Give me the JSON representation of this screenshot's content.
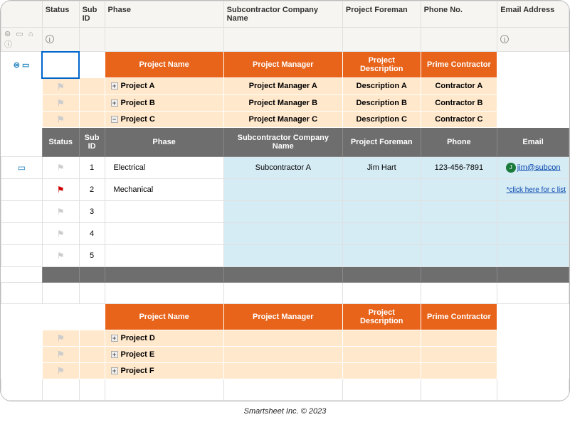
{
  "columns": {
    "status": "Status",
    "subid": "Sub ID",
    "phase": "Phase",
    "subco": "Subcontractor Company Name",
    "foreman": "Project Foreman",
    "phoneno": "Phone No.",
    "email": "Email Address"
  },
  "orangeHeaders": {
    "projectName": "Project Name",
    "projectManager": "Project Manager",
    "projectDescription": "Project Description",
    "primeContractor": "Prime Contractor"
  },
  "projectsTop": [
    {
      "expand": "+",
      "name": "Project A",
      "manager": "Project Manager A",
      "desc": "Description A",
      "contractor": "Contractor A"
    },
    {
      "expand": "+",
      "name": "Project B",
      "manager": "Project Manager B",
      "desc": "Description B",
      "contractor": "Contractor B"
    },
    {
      "expand": "−",
      "name": "Project C",
      "manager": "Project Manager C",
      "desc": "Description C",
      "contractor": "Contractor C"
    }
  ],
  "grayHeaders": {
    "status": "Status",
    "subid": "Sub ID",
    "phase": "Phase",
    "subco": "Subcontractor Company Name",
    "foreman": "Project Foreman",
    "phone": "Phone",
    "email": "Email"
  },
  "subRows": [
    {
      "flag": "gray",
      "id": "1",
      "phase": "Electrical",
      "subco": "Subcontractor A",
      "foreman": "Jim Hart",
      "phone": "123-456-7891",
      "avatar": "J",
      "emailText": "jim@subcon"
    },
    {
      "flag": "red",
      "id": "2",
      "phase": "Mechanical",
      "note": "*click here for c\nlist"
    },
    {
      "flag": "gray",
      "id": "3",
      "phase": ""
    },
    {
      "flag": "gray",
      "id": "4",
      "phase": ""
    },
    {
      "flag": "gray",
      "id": "5",
      "phase": ""
    }
  ],
  "projectsBottom": [
    {
      "expand": "+",
      "name": "Project D"
    },
    {
      "expand": "+",
      "name": "Project E"
    },
    {
      "expand": "+",
      "name": "Project F"
    }
  ],
  "footer": "Smartsheet Inc. © 2023",
  "colors": {
    "orange": "#e8641b",
    "lightOrange": "#ffe8cc",
    "gray": "#6e6e6e",
    "lightBlue": "#d6ecf5",
    "link": "#0645ad",
    "flagRed": "#cc0000",
    "avatarGreen": "#1a7a3a"
  }
}
